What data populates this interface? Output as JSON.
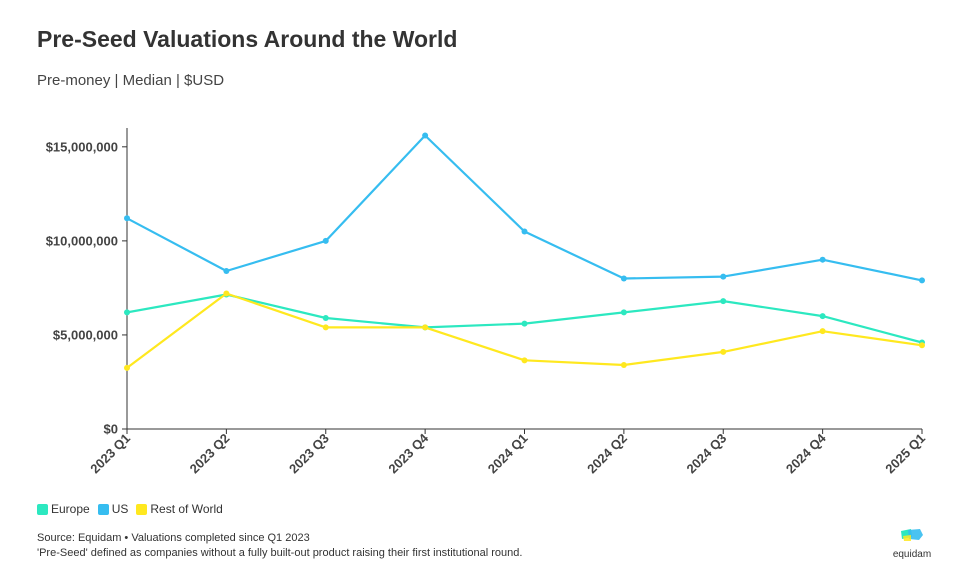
{
  "title": "Pre-Seed Valuations Around the World",
  "subtitle": "Pre-money | Median | $USD",
  "chart_data": {
    "type": "line",
    "categories": [
      "2023 Q1",
      "2023 Q2",
      "2023 Q3",
      "2023 Q4",
      "2024 Q1",
      "2024 Q2",
      "2024 Q3",
      "2024 Q4",
      "2025 Q1"
    ],
    "ylim": [
      0,
      16000000
    ],
    "yticks": [
      0,
      5000000,
      10000000,
      15000000
    ],
    "ytick_labels": [
      "$0",
      "$5,000,000",
      "$10,000,000",
      "$15,000,000"
    ],
    "grid": false,
    "legend_position": "bottom-left",
    "series": [
      {
        "name": "Europe",
        "color": "#2ce8c0",
        "values": [
          6200000,
          7150000,
          5900000,
          5400000,
          5600000,
          6200000,
          6800000,
          6000000,
          4600000
        ]
      },
      {
        "name": "US",
        "color": "#36bdf0",
        "values": [
          11200000,
          8400000,
          10000000,
          15600000,
          10500000,
          8000000,
          8100000,
          9000000,
          7900000
        ]
      },
      {
        "name": "Rest of World",
        "color": "#ffe81f",
        "values": [
          3250000,
          7200000,
          5400000,
          5400000,
          3650000,
          3400000,
          4100000,
          5200000,
          4450000
        ]
      }
    ]
  },
  "legend": [
    {
      "label": "Europe",
      "color": "#2ce8c0"
    },
    {
      "label": "US",
      "color": "#36bdf0"
    },
    {
      "label": "Rest of World",
      "color": "#ffe81f"
    }
  ],
  "source_line1": "Source: Equidam • Valuations completed since Q1 2023",
  "source_line2": "'Pre-Seed' defined as companies without a fully built-out product raising their first institutional round.",
  "logo": {
    "text": "equidam",
    "color_primary": "#36bdf0",
    "color_secondary": "#ffe81f",
    "color_tertiary": "#2ce8c0"
  }
}
